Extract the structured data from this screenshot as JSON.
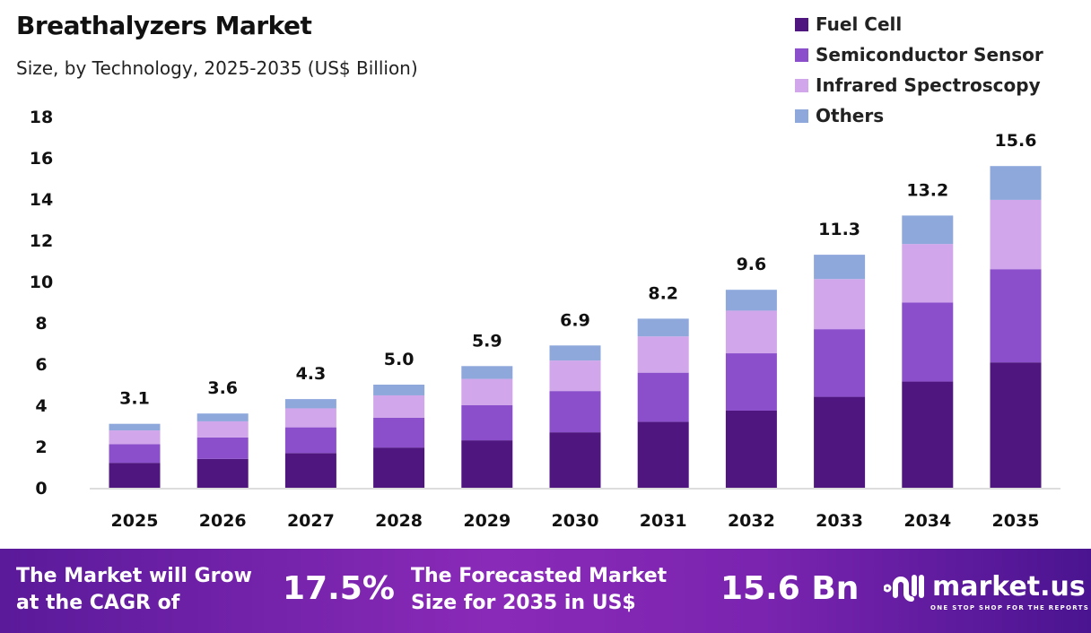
{
  "chart_data": {
    "type": "bar",
    "stacked": true,
    "title": "Breathalyzers Market",
    "subtitle": "Size, by Technology, 2025-2035 (US$ Billion)",
    "categories": [
      "2025",
      "2026",
      "2027",
      "2028",
      "2029",
      "2030",
      "2031",
      "2032",
      "2033",
      "2034",
      "2035"
    ],
    "series": [
      {
        "name": "Fuel Cell",
        "color": "#4f1680",
        "values": [
          1.21,
          1.4,
          1.68,
          1.95,
          2.3,
          2.69,
          3.2,
          3.74,
          4.41,
          5.15,
          6.08
        ]
      },
      {
        "name": "Semiconductor Sensor",
        "color": "#8b4fcc",
        "values": [
          0.9,
          1.04,
          1.25,
          1.45,
          1.71,
          2.0,
          2.38,
          2.78,
          3.28,
          3.83,
          4.52
        ]
      },
      {
        "name": "Infrared Spectroscopy",
        "color": "#d2a6ea",
        "values": [
          0.67,
          0.78,
          0.92,
          1.08,
          1.27,
          1.48,
          1.76,
          2.07,
          2.43,
          2.84,
          3.36
        ]
      },
      {
        "name": "Others",
        "color": "#8ea8dc",
        "values": [
          0.32,
          0.38,
          0.45,
          0.52,
          0.62,
          0.73,
          0.86,
          1.01,
          1.18,
          1.38,
          1.64
        ]
      }
    ],
    "totals": [
      "3.1",
      "3.6",
      "4.3",
      "5.0",
      "5.9",
      "6.9",
      "8.2",
      "9.6",
      "11.3",
      "13.2",
      "15.6"
    ],
    "yticks": [
      "0",
      "2",
      "4",
      "6",
      "8",
      "10",
      "12",
      "14",
      "16",
      "18"
    ],
    "ylim": [
      0,
      18
    ],
    "legend": "top-right",
    "grid": false
  },
  "footer": {
    "cagr_text": "The Market will Grow at the CAGR of",
    "cagr_value": "17.5%",
    "forecast_text": "The Forecasted Market Size for 2035 in US$",
    "forecast_value": "15.6 Bn",
    "logo_name": "market.us",
    "logo_tagline": "ONE STOP SHOP FOR THE REPORTS"
  }
}
